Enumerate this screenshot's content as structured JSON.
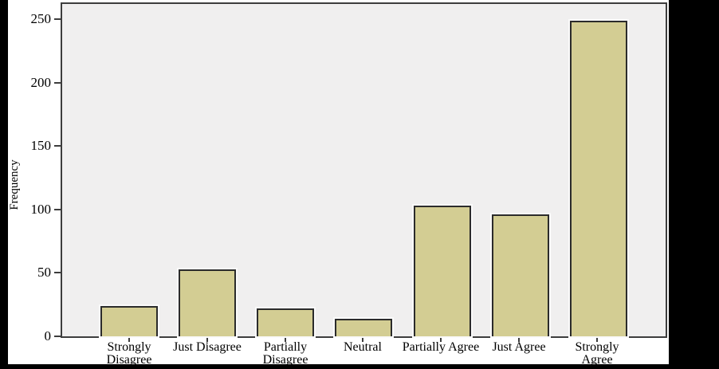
{
  "chart_data": {
    "type": "bar",
    "title": "",
    "xlabel": "",
    "ylabel": "Frequency",
    "categories": [
      "Strongly Disagree",
      "Just Disagree",
      "Partially Disagree",
      "Neutral",
      "Partially Agree",
      "Just Agree",
      "Strongly Agree"
    ],
    "values": [
      24,
      53,
      22,
      14,
      103,
      96,
      249
    ],
    "label_lines": [
      [
        "Strongly",
        "Disagree"
      ],
      [
        "Just Disagree"
      ],
      [
        "Partially",
        "Disagree"
      ],
      [
        "Neutral"
      ],
      [
        "Partially Agree"
      ],
      [
        "Just Agree"
      ],
      [
        "Strongly",
        "Agree"
      ]
    ],
    "yticks": [
      0,
      50,
      100,
      150,
      200,
      250
    ],
    "ylim": [
      0,
      262
    ],
    "grid": false,
    "legend_position": "none",
    "colors": {
      "bar_fill": "#d3cd93",
      "bar_border": "#2b2b2b",
      "bar_halo": "#fafafa",
      "plot_background": "#f0efef",
      "frame_border": "#3d3d3d",
      "surround_border": "#000000",
      "text": "#000000"
    }
  }
}
